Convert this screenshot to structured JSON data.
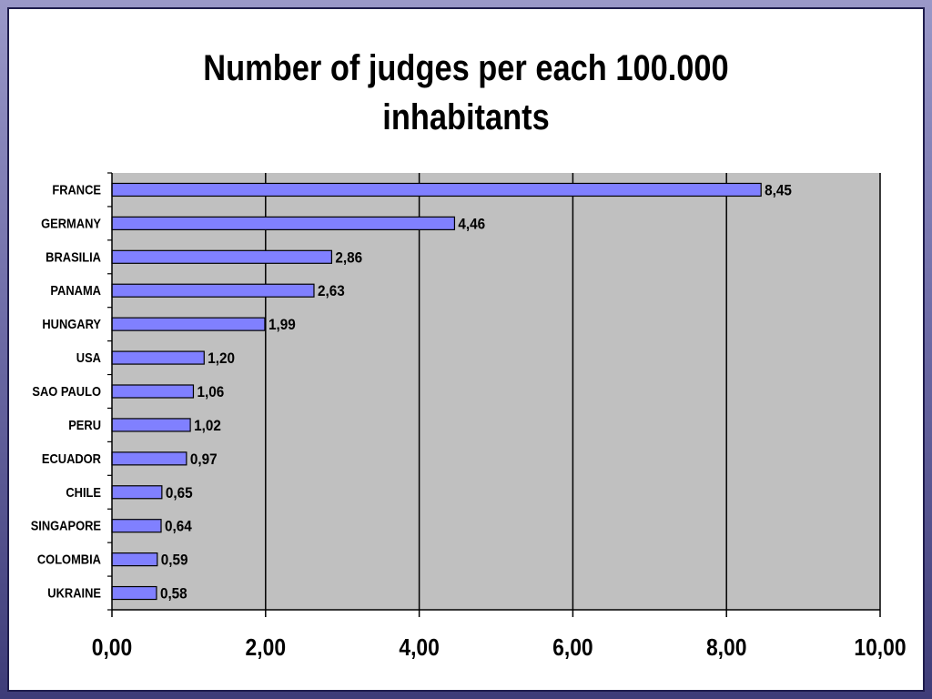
{
  "chart_data": {
    "type": "bar",
    "orientation": "horizontal",
    "title_lines": [
      "Number of judges per each 100.000",
      "inhabitants"
    ],
    "categories": [
      "FRANCE",
      "GERMANY",
      "BRASILIA",
      "PANAMA",
      "HUNGARY",
      "USA",
      "SAO PAULO",
      "PERU",
      "ECUADOR",
      "CHILE",
      "SINGAPORE",
      "COLOMBIA",
      "UKRAINE"
    ],
    "values": [
      8.45,
      4.46,
      2.86,
      2.63,
      1.99,
      1.2,
      1.06,
      1.02,
      0.97,
      0.65,
      0.64,
      0.59,
      0.58
    ],
    "value_labels": [
      "8,45",
      "4,46",
      "2,86",
      "2,63",
      "1,99",
      "1,20",
      "1,06",
      "1,02",
      "0,97",
      "0,65",
      "0,64",
      "0,59",
      "0,58"
    ],
    "x_ticks": [
      0,
      2,
      4,
      6,
      8,
      10
    ],
    "x_tick_labels": [
      "0,00",
      "2,00",
      "4,00",
      "6,00",
      "8,00",
      "10,00"
    ],
    "xlim": [
      0,
      10
    ],
    "grid": true,
    "legend": "none",
    "colors": {
      "bar_fill": "#8080ff",
      "bar_stroke": "#000000",
      "plot_background": "#c0c0c0",
      "gridline": "#000000"
    }
  }
}
